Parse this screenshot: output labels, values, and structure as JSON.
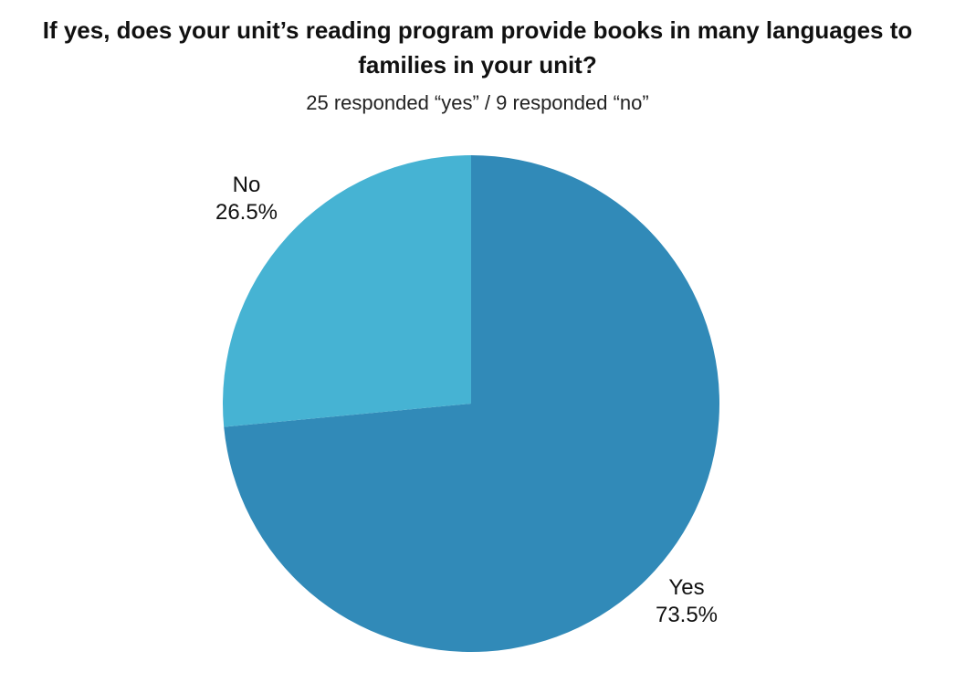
{
  "chart_data": {
    "type": "pie",
    "title_lines": [
      "If yes, does your unit’s reading program provide books in many languages to",
      "families in your unit?"
    ],
    "subtitle": "25 responded “yes” / 9 responded “no”",
    "slices": [
      {
        "label": "Yes",
        "value": 73.5,
        "display": "73.5%",
        "color": "#318ab8"
      },
      {
        "label": "No",
        "value": 26.5,
        "display": "26.5%",
        "color": "#46b3d3"
      }
    ],
    "start": "12 o'clock",
    "direction": "clockwise",
    "legend": "none"
  }
}
